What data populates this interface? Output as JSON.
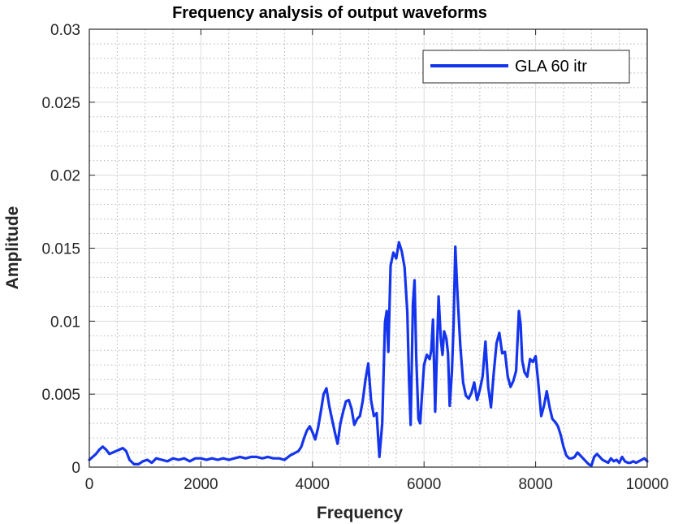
{
  "chart_data": {
    "type": "line",
    "title": "Frequency analysis of output waveforms",
    "xlabel": "Frequency",
    "ylabel": "Amplitude",
    "xlim": [
      0,
      10000
    ],
    "ylim": [
      0,
      0.03
    ],
    "xticks": [
      0,
      2000,
      4000,
      6000,
      8000,
      10000
    ],
    "xtick_labels": [
      "0",
      "2000",
      "4000",
      "6000",
      "8000",
      "10000"
    ],
    "yticks": [
      0,
      0.005,
      0.01,
      0.015,
      0.02,
      0.025,
      0.03
    ],
    "ytick_labels": [
      "0",
      "0.005",
      "0.01",
      "0.015",
      "0.02",
      "0.025",
      "0.03"
    ],
    "grid": true,
    "minor_grid": true,
    "legend_position": "top-right",
    "series": [
      {
        "name": "GLA 60 itr",
        "color": "#1434ed",
        "x": [
          0,
          60,
          120,
          180,
          240,
          300,
          360,
          420,
          480,
          540,
          600,
          660,
          720,
          800,
          880,
          960,
          1040,
          1120,
          1200,
          1300,
          1400,
          1500,
          1600,
          1700,
          1800,
          1900,
          2000,
          2100,
          2200,
          2300,
          2400,
          2500,
          2600,
          2700,
          2800,
          2900,
          3000,
          3100,
          3200,
          3300,
          3400,
          3500,
          3600,
          3650,
          3700,
          3750,
          3800,
          3850,
          3900,
          3950,
          4000,
          4050,
          4100,
          4150,
          4200,
          4250,
          4300,
          4350,
          4400,
          4450,
          4500,
          4550,
          4600,
          4650,
          4700,
          4750,
          4800,
          4850,
          4900,
          4950,
          5000,
          5050,
          5100,
          5150,
          5200,
          5250,
          5300,
          5330,
          5360,
          5400,
          5450,
          5500,
          5550,
          5600,
          5650,
          5700,
          5730,
          5760,
          5800,
          5830,
          5860,
          5900,
          5930,
          5960,
          6000,
          6050,
          6100,
          6130,
          6160,
          6200,
          6230,
          6260,
          6300,
          6330,
          6360,
          6400,
          6430,
          6460,
          6500,
          6530,
          6560,
          6600,
          6650,
          6700,
          6750,
          6800,
          6850,
          6900,
          6950,
          7000,
          7050,
          7100,
          7150,
          7200,
          7250,
          7300,
          7350,
          7400,
          7450,
          7500,
          7550,
          7600,
          7650,
          7700,
          7730,
          7760,
          7800,
          7850,
          7900,
          7950,
          8000,
          8050,
          8100,
          8150,
          8200,
          8250,
          8300,
          8350,
          8400,
          8450,
          8500,
          8550,
          8600,
          8650,
          8700,
          8750,
          8800,
          8850,
          8900,
          8950,
          9000,
          9050,
          9100,
          9150,
          9200,
          9250,
          9300,
          9350,
          9400,
          9450,
          9500,
          9550,
          9600,
          9650,
          9700,
          9750,
          9800,
          9850,
          9900,
          9950,
          10000
        ],
        "y": [
          0.0005,
          0.0007,
          0.0009,
          0.0012,
          0.0014,
          0.0012,
          0.0009,
          0.001,
          0.0011,
          0.0012,
          0.0013,
          0.0011,
          0.0005,
          0.0002,
          0.0002,
          0.0004,
          0.0005,
          0.0003,
          0.0006,
          0.0005,
          0.0004,
          0.0006,
          0.0005,
          0.0006,
          0.0004,
          0.0006,
          0.0006,
          0.0005,
          0.0006,
          0.0005,
          0.0006,
          0.0005,
          0.0006,
          0.0007,
          0.0006,
          0.0007,
          0.0007,
          0.0006,
          0.0007,
          0.0006,
          0.0006,
          0.0005,
          0.0008,
          0.0009,
          0.001,
          0.0011,
          0.0014,
          0.002,
          0.0025,
          0.0028,
          0.0024,
          0.0019,
          0.0027,
          0.0038,
          0.005,
          0.0054,
          0.0042,
          0.0033,
          0.0024,
          0.0016,
          0.003,
          0.0038,
          0.0045,
          0.0046,
          0.004,
          0.0029,
          0.0033,
          0.0035,
          0.0045,
          0.006,
          0.0071,
          0.0046,
          0.0035,
          0.0037,
          0.0007,
          0.003,
          0.0099,
          0.0107,
          0.0079,
          0.0138,
          0.0147,
          0.0143,
          0.0154,
          0.0148,
          0.0137,
          0.0106,
          0.006,
          0.0029,
          0.0112,
          0.0128,
          0.0075,
          0.0033,
          0.003,
          0.0048,
          0.007,
          0.0077,
          0.0074,
          0.008,
          0.0101,
          0.0038,
          0.0078,
          0.0117,
          0.0088,
          0.0077,
          0.0093,
          0.0088,
          0.0078,
          0.0042,
          0.0065,
          0.0098,
          0.0151,
          0.0118,
          0.0083,
          0.0058,
          0.0049,
          0.0047,
          0.0051,
          0.0058,
          0.0046,
          0.0053,
          0.0062,
          0.0086,
          0.0055,
          0.0041,
          0.0065,
          0.0085,
          0.0092,
          0.0078,
          0.0079,
          0.0062,
          0.0055,
          0.0059,
          0.0066,
          0.0107,
          0.0098,
          0.0073,
          0.0065,
          0.0062,
          0.0074,
          0.0072,
          0.0076,
          0.0057,
          0.0035,
          0.0042,
          0.0052,
          0.0041,
          0.0033,
          0.0031,
          0.0028,
          0.0022,
          0.0014,
          0.0008,
          0.0006,
          0.0006,
          0.0007,
          0.001,
          0.0008,
          0.0006,
          0.0004,
          0.0002,
          0.0001,
          0.0007,
          0.0009,
          0.0007,
          0.0005,
          0.0004,
          0.0003,
          0.0006,
          0.0004,
          0.0005,
          0.0003,
          0.0007,
          0.0004,
          0.0003,
          0.0003,
          0.0004,
          0.0003,
          0.0004,
          0.0005,
          0.0006,
          0.0004
        ]
      }
    ]
  }
}
